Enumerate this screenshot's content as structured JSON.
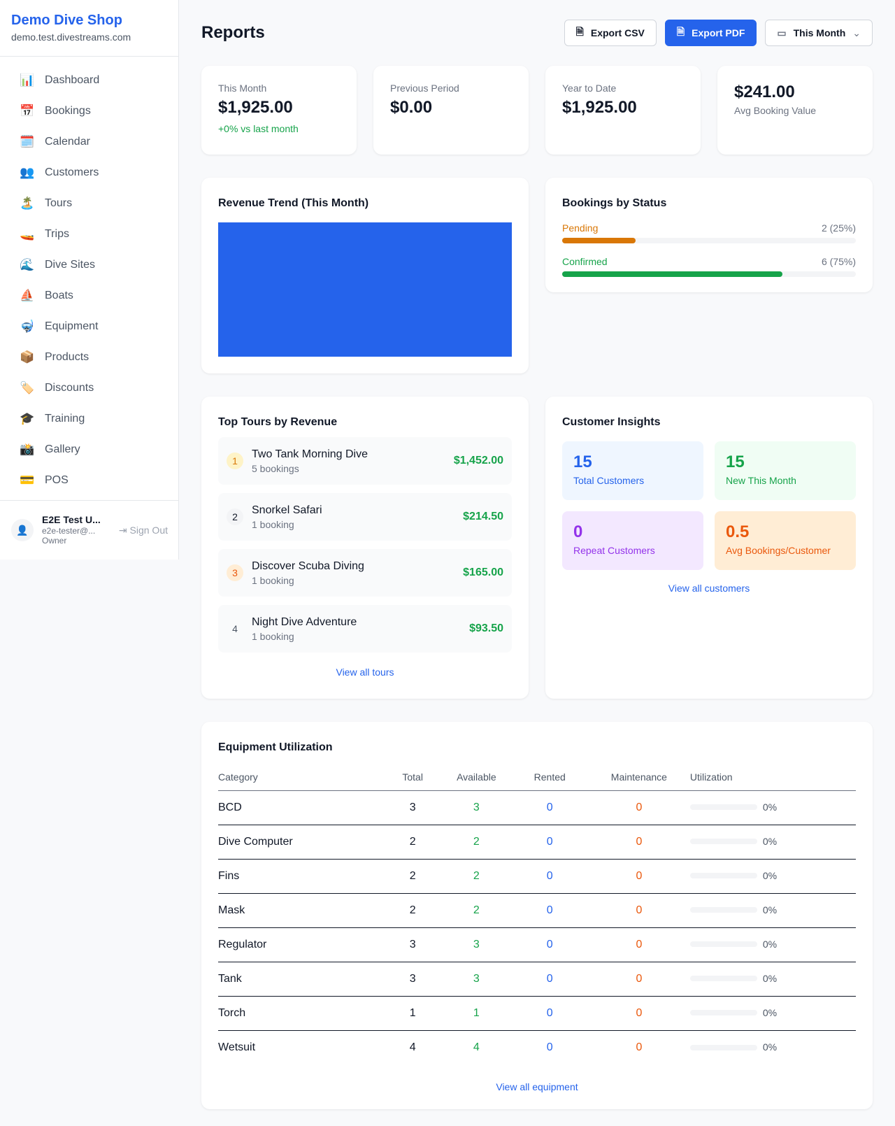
{
  "sidebar": {
    "brand": "Demo Dive Shop",
    "url": "demo.test.divestreams.com",
    "items": [
      {
        "icon": "📊",
        "label": "Dashboard"
      },
      {
        "icon": "📅",
        "label": "Bookings"
      },
      {
        "icon": "🗓️",
        "label": "Calendar"
      },
      {
        "icon": "👥",
        "label": "Customers"
      },
      {
        "icon": "🏝️",
        "label": "Tours"
      },
      {
        "icon": "🚤",
        "label": "Trips"
      },
      {
        "icon": "🌊",
        "label": "Dive Sites"
      },
      {
        "icon": "⛵",
        "label": "Boats"
      },
      {
        "icon": "🤿",
        "label": "Equipment"
      },
      {
        "icon": "📦",
        "label": "Products"
      },
      {
        "icon": "🏷️",
        "label": "Discounts"
      },
      {
        "icon": "🎓",
        "label": "Training"
      },
      {
        "icon": "📸",
        "label": "Gallery"
      },
      {
        "icon": "💳",
        "label": "POS"
      }
    ],
    "user": {
      "name": "E2E Test U...",
      "email": "e2e-tester@...",
      "role": "Owner",
      "sign_out": "Sign Out"
    }
  },
  "header": {
    "title": "Reports",
    "export_csv": "Export CSV",
    "export_pdf": "Export PDF",
    "period": "This Month"
  },
  "stats": [
    {
      "label": "This Month",
      "value": "$1,925.00",
      "change": "+0% vs last month"
    },
    {
      "label": "Previous Period",
      "value": "$0.00"
    },
    {
      "label": "Year to Date",
      "value": "$1,925.00"
    },
    {
      "label": "Avg Booking Value",
      "value": "$241.00"
    }
  ],
  "revenue": {
    "title": "Revenue Trend (This Month)",
    "color": "#2563eb"
  },
  "bookings_status": {
    "title": "Bookings by Status",
    "items": [
      {
        "label": "Pending",
        "count": "2 (25%)",
        "percent": 25,
        "color": "#d97706"
      },
      {
        "label": "Confirmed",
        "count": "6 (75%)",
        "percent": 75,
        "color": "#16a34a"
      }
    ]
  },
  "top_tours": {
    "title": "Top Tours by Revenue",
    "link": "View all tours",
    "items": [
      {
        "rank": "1",
        "name": "Two Tank Morning Dive",
        "bookings": "5 bookings",
        "revenue": "$1,452.00"
      },
      {
        "rank": "2",
        "name": "Snorkel Safari",
        "bookings": "1 booking",
        "revenue": "$214.50"
      },
      {
        "rank": "3",
        "name": "Discover Scuba Diving",
        "bookings": "1 booking",
        "revenue": "$165.00"
      },
      {
        "rank": "4",
        "name": "Night Dive Adventure",
        "bookings": "1 booking",
        "revenue": "$93.50"
      }
    ]
  },
  "insights": {
    "title": "Customer Insights",
    "link": "View all customers",
    "items": [
      {
        "value": "15",
        "label": "Total Customers"
      },
      {
        "value": "15",
        "label": "New This Month"
      },
      {
        "value": "0",
        "label": "Repeat Customers"
      },
      {
        "value": "0.5",
        "label": "Avg Bookings/Customer"
      }
    ]
  },
  "equipment": {
    "title": "Equipment Utilization",
    "link": "View all equipment",
    "columns": [
      "Category",
      "Total",
      "Available",
      "Rented",
      "Maintenance",
      "Utilization"
    ],
    "rows": [
      [
        "BCD",
        "3",
        "3",
        "0",
        "0",
        "0%"
      ],
      [
        "Dive Computer",
        "2",
        "2",
        "0",
        "0",
        "0%"
      ],
      [
        "Fins",
        "2",
        "2",
        "0",
        "0",
        "0%"
      ],
      [
        "Mask",
        "2",
        "2",
        "0",
        "0",
        "0%"
      ],
      [
        "Regulator",
        "3",
        "3",
        "0",
        "0",
        "0%"
      ],
      [
        "Tank",
        "3",
        "3",
        "0",
        "0",
        "0%"
      ],
      [
        "Torch",
        "1",
        "1",
        "0",
        "0",
        "0%"
      ],
      [
        "Wetsuit",
        "4",
        "4",
        "0",
        "0",
        "0%"
      ]
    ]
  }
}
